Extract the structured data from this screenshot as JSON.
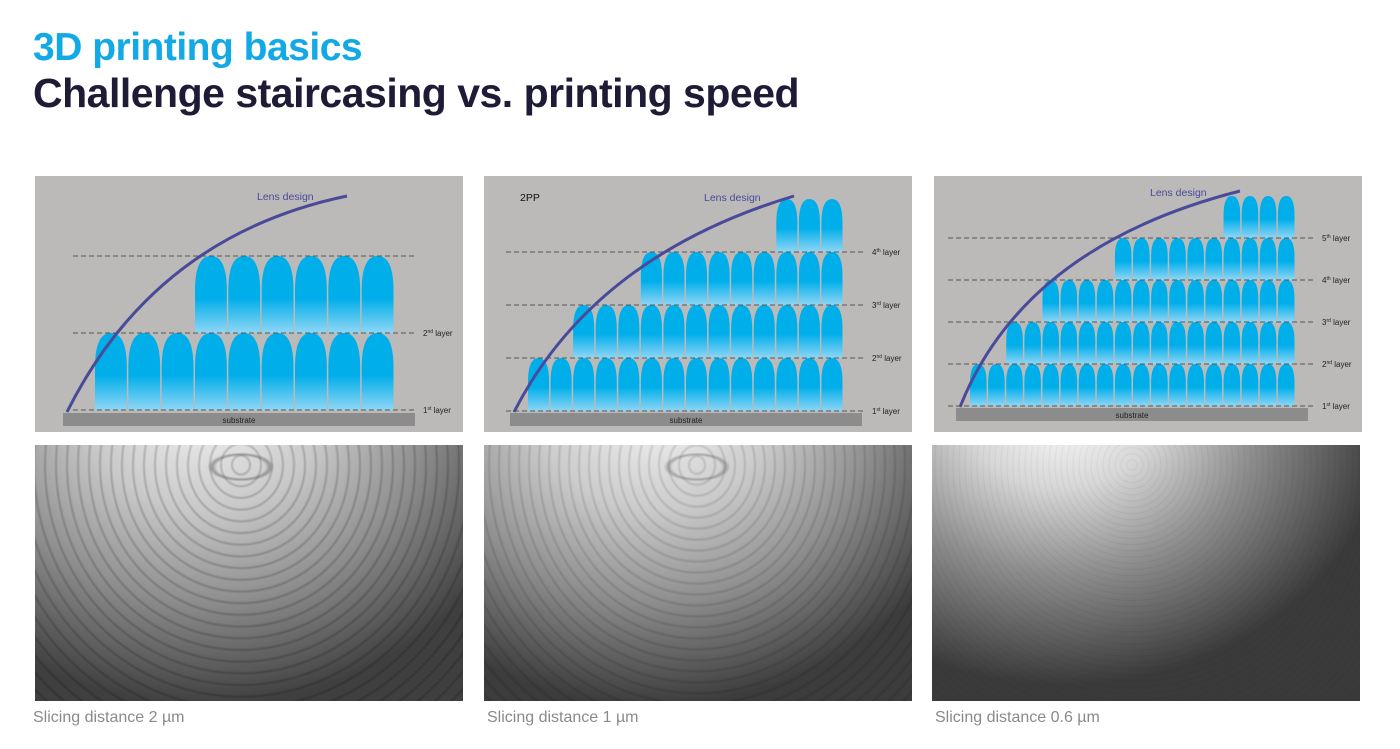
{
  "header": {
    "kicker": "3D printing basics",
    "title": "Challenge staircasing vs. printing speed"
  },
  "colors": {
    "kicker": "#12a9e4",
    "title": "#1e1b36",
    "voxel": "#00aeea",
    "lens_curve": "#4a4a9a",
    "panel_bg": "#bbbab8",
    "substrate": "#8c8c8c"
  },
  "panels": [
    {
      "tag": "",
      "lens_label": "Lens design",
      "substrate_label": "substrate",
      "columns": 9,
      "layers": [
        {
          "sup": "st",
          "num": "1",
          "label": "layer",
          "start_col": 0
        },
        {
          "sup": "nd",
          "num": "2",
          "label": "layer",
          "start_col": 3
        }
      ],
      "caption": "Slicing distance 2 µm"
    },
    {
      "tag": "2PP",
      "lens_label": "Lens design",
      "substrate_label": "substrate",
      "columns": 14,
      "layers": [
        {
          "sup": "st",
          "num": "1",
          "label": "layer",
          "start_col": 0
        },
        {
          "sup": "nd",
          "num": "2",
          "label": "layer",
          "start_col": 2
        },
        {
          "sup": "rd",
          "num": "3",
          "label": "layer",
          "start_col": 5
        },
        {
          "sup": "th",
          "num": "4",
          "label": "layer",
          "start_col": 11
        }
      ],
      "caption": "Slicing distance 1 µm"
    },
    {
      "tag": "",
      "lens_label": "Lens design",
      "substrate_label": "substrate",
      "columns": 18,
      "layers": [
        {
          "sup": "st",
          "num": "1",
          "label": "layer",
          "start_col": 0
        },
        {
          "sup": "nd",
          "num": "2",
          "label": "layer",
          "start_col": 2
        },
        {
          "sup": "rd",
          "num": "3",
          "label": "layer",
          "start_col": 4
        },
        {
          "sup": "th",
          "num": "4",
          "label": "layer",
          "start_col": 8
        },
        {
          "sup": "th",
          "num": "5",
          "label": "layer",
          "start_col": 14
        }
      ],
      "caption": "Slicing distance 0.6 µm"
    }
  ]
}
